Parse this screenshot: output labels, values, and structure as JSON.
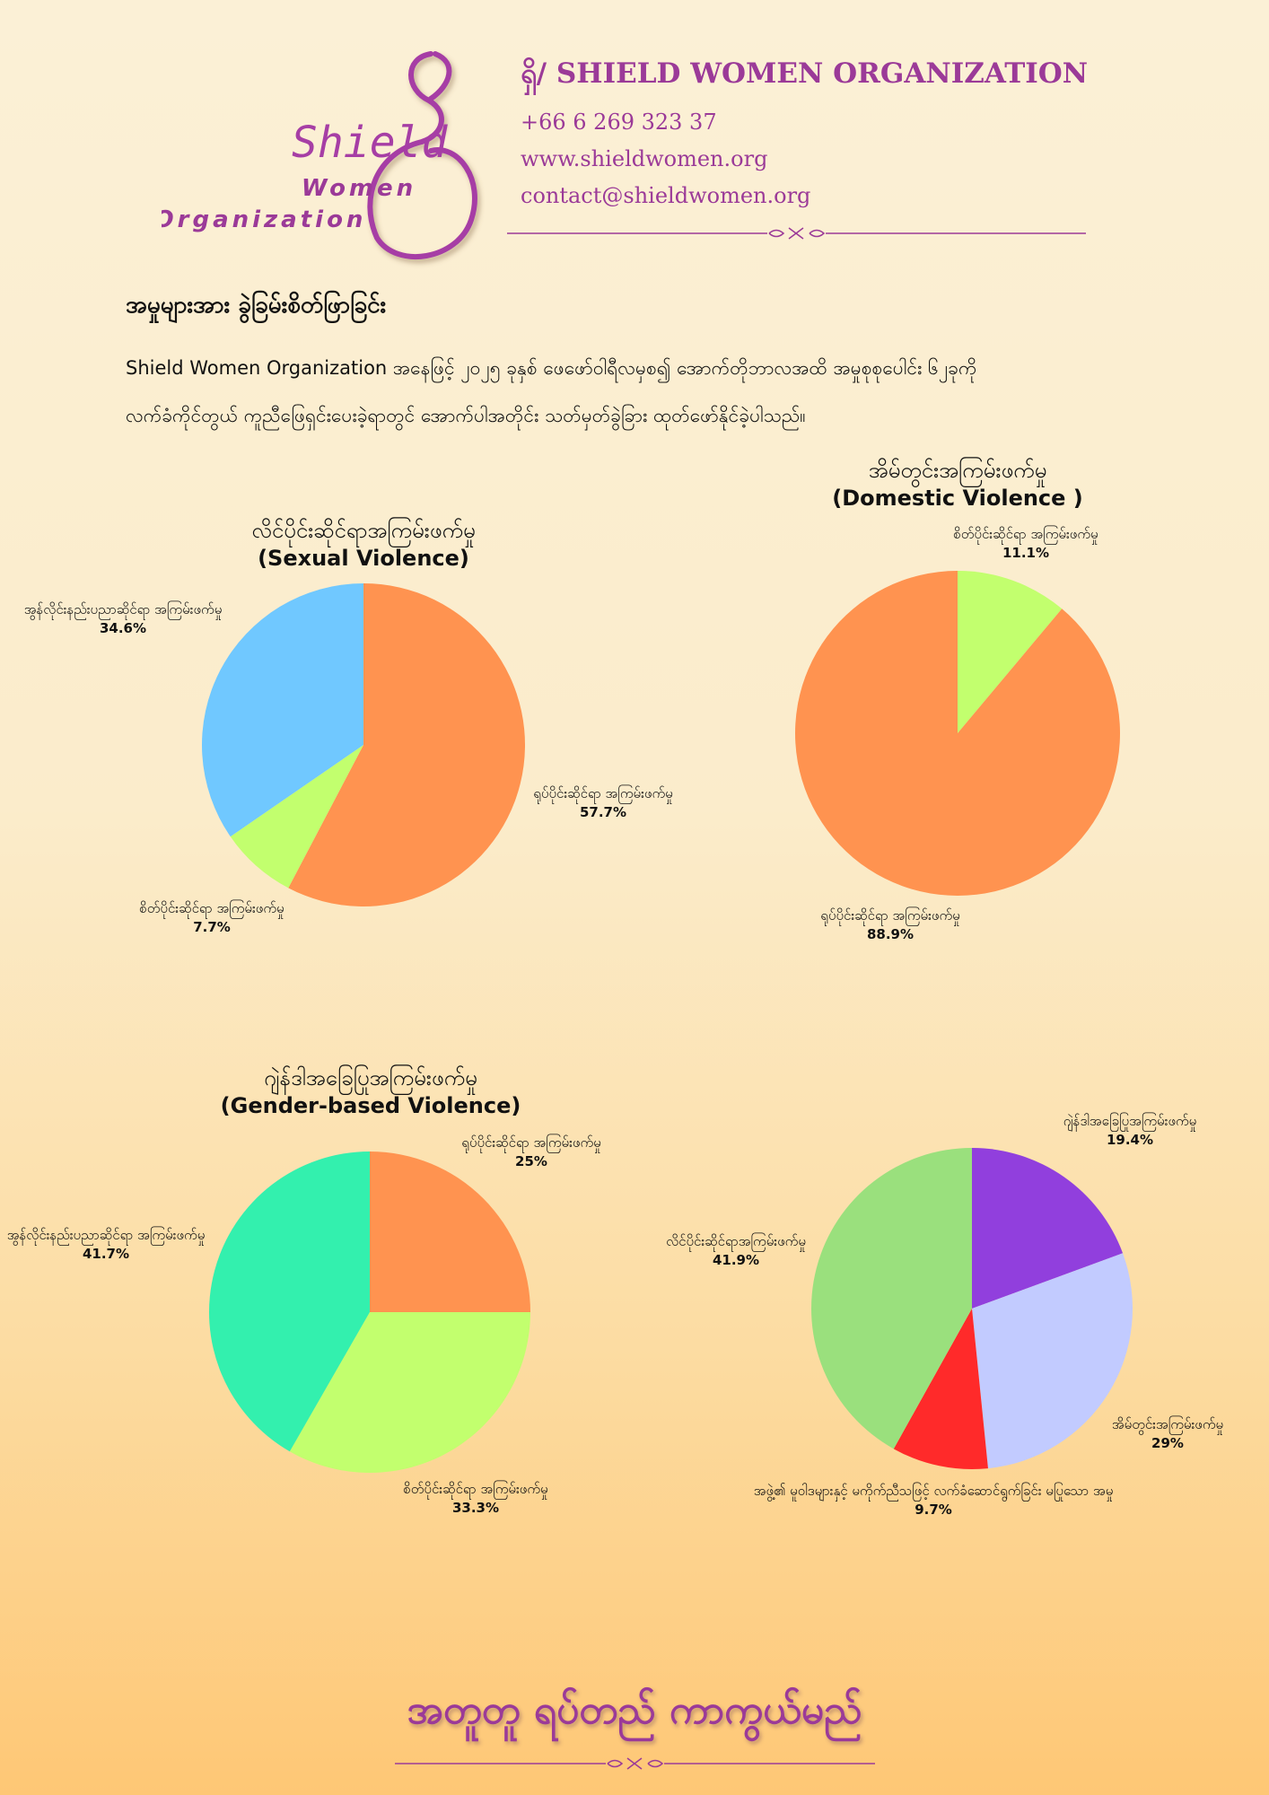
{
  "header": {
    "logo_text": "Shield",
    "logo_sub1": "Women",
    "logo_sub2": "Organization",
    "org_name": "ရှိ/ SHIELD WOMEN ORGANIZATION",
    "phone": "+66 6 269 323 37",
    "website": "www.shieldwomen.org",
    "email": "contact@shieldwomen.org"
  },
  "intro": {
    "title": "အမှုများအား ခွဲခြမ်းစိတ်ဖြာခြင်း",
    "line1": "Shield Women Organization အနေဖြင့် ၂၀၂၅ ခုနှစ် ဖေဖော်ဝါရီလမှစ၍ အောက်တိုဘာလအထိ အမှုစုစုပေါင်း ၆၂ခုကို",
    "line2": "လက်ခံကိုင်တွယ် ကူညီဖြေရှင်းပေးခဲ့ရာတွင် အောက်ပါအတိုင်း သတ်မှတ်ခွဲခြား ထုတ်ဖော်နိုင်ခဲ့ပါသည်။"
  },
  "footer": {
    "slogan": "အတူတူ ရပ်တည် ကာကွယ်မည်"
  },
  "colors": {
    "brand": "#9b3a98",
    "orange": "#ff9350",
    "lime": "#c2ff6e",
    "sky": "#70c8ff",
    "teal": "#33f0ae",
    "purple": "#913fdd",
    "lavender": "#c2cbff",
    "red": "#ff2a2a",
    "green": "#9ae07d"
  },
  "chart_data": [
    {
      "type": "pie",
      "title_line1": "လိင်ပိုင်းဆိုင်ရာအကြမ်းဖက်မှု",
      "title_line2": "(Sexual Violence)",
      "slices": [
        {
          "label": "ရုပ်ပိုင်းဆိုင်ရာ အကြမ်းဖက်မှု",
          "value": 57.7,
          "value_label": "57.7%",
          "color": "#ff9350"
        },
        {
          "label": "စိတ်ပိုင်းဆိုင်ရာ အကြမ်းဖက်မှု",
          "value": 7.7,
          "value_label": "7.7%",
          "color": "#c2ff6e"
        },
        {
          "label": "အွန်လိုင်းနည်းပညာဆိုင်ရာ အကြမ်းဖက်မှု",
          "value": 34.6,
          "value_label": "34.6%",
          "color": "#70c8ff"
        }
      ]
    },
    {
      "type": "pie",
      "title_line1": "အိမ်တွင်းအကြမ်းဖက်မှု",
      "title_line2": "(Domestic Violence )",
      "slices": [
        {
          "label": "စိတ်ပိုင်းဆိုင်ရာ အကြမ်းဖက်မှု",
          "value": 11.1,
          "value_label": "11.1%",
          "color": "#c2ff6e"
        },
        {
          "label": "ရုပ်ပိုင်းဆိုင်ရာ အကြမ်းဖက်မှု",
          "value": 88.9,
          "value_label": "88.9%",
          "color": "#ff9350"
        }
      ]
    },
    {
      "type": "pie",
      "title_line1": "ဂျဲန်ဒါအခြေပြုအကြမ်းဖက်မှု",
      "title_line2": "(Gender-based Violence)",
      "slices": [
        {
          "label": "ရုပ်ပိုင်းဆိုင်ရာ အကြမ်းဖက်မှု",
          "value": 25,
          "value_label": "25%",
          "color": "#ff9350"
        },
        {
          "label": "စိတ်ပိုင်းဆိုင်ရာ အကြမ်းဖက်မှု",
          "value": 33.3,
          "value_label": "33.3%",
          "color": "#c2ff6e"
        },
        {
          "label": "အွန်လိုင်းနည်းပညာဆိုင်ရာ အကြမ်းဖက်မှု",
          "value": 41.7,
          "value_label": "41.7%",
          "color": "#33f0ae"
        }
      ]
    },
    {
      "type": "pie",
      "title_line1": "",
      "title_line2": "",
      "slices": [
        {
          "label": "ဂျဲန်ဒါအခြေပြုအကြမ်းဖက်မှု",
          "value": 19.4,
          "value_label": "19.4%",
          "color": "#913fdd"
        },
        {
          "label": "အိမ်တွင်းအကြမ်းဖက်မှု",
          "value": 29,
          "value_label": "29%",
          "color": "#c2cbff"
        },
        {
          "label": "အဖွဲ့၏ မူဝါဒများနှင့် မကိုက်ညီသဖြင့် လက်ခံဆောင်ရွက်ခြင်း မပြုသော အမှု",
          "value": 9.7,
          "value_label": "9.7%",
          "color": "#ff2a2a"
        },
        {
          "label": "လိင်ပိုင်းဆိုင်ရာအကြမ်းဖက်မှု",
          "value": 41.9,
          "value_label": "41.9%",
          "color": "#9ae07d"
        }
      ]
    }
  ]
}
